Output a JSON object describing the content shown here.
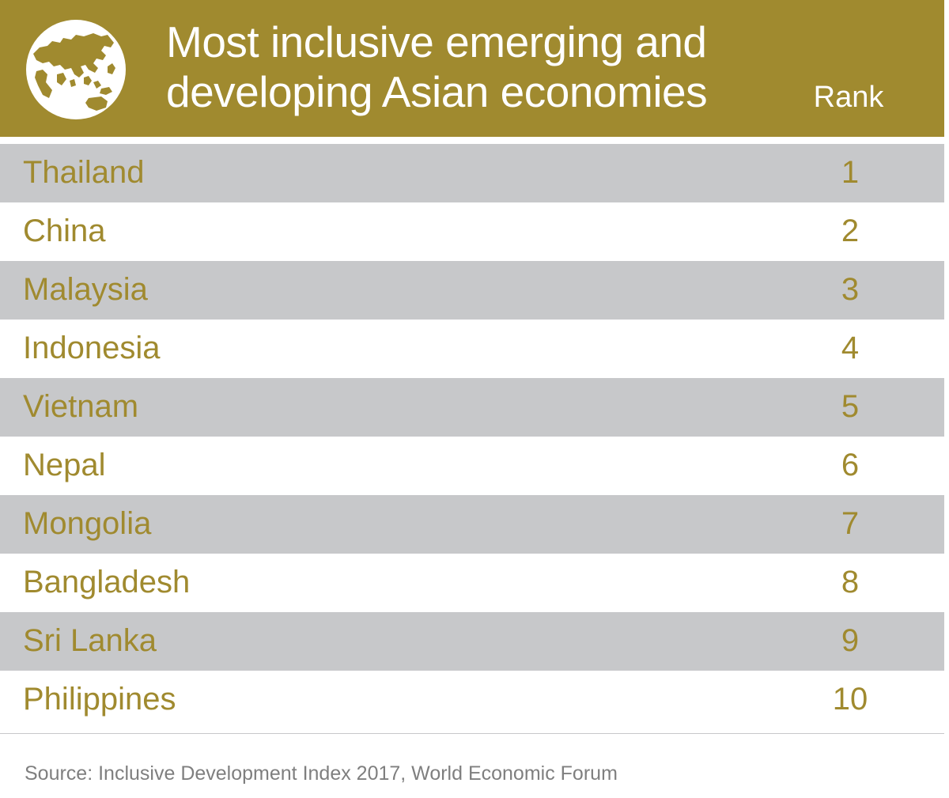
{
  "header": {
    "title_line1": "Most inclusive emerging and",
    "title_line2": "developing Asian economies",
    "rank_label": "Rank",
    "icon": "globe-icon"
  },
  "colors": {
    "accent": "#a08a2f",
    "stripe": "#c7c8ca",
    "source_text": "#7f7f7f"
  },
  "chart_data": {
    "type": "table",
    "columns": [
      "",
      "Rank"
    ],
    "rows": [
      {
        "country": "Thailand",
        "rank": "1"
      },
      {
        "country": "China",
        "rank": "2"
      },
      {
        "country": "Malaysia",
        "rank": "3"
      },
      {
        "country": "Indonesia",
        "rank": "4"
      },
      {
        "country": "Vietnam",
        "rank": "5"
      },
      {
        "country": "Nepal",
        "rank": "6"
      },
      {
        "country": "Mongolia",
        "rank": "7"
      },
      {
        "country": "Bangladesh",
        "rank": "8"
      },
      {
        "country": "Sri Lanka",
        "rank": "9"
      },
      {
        "country": "Philippines",
        "rank": "10"
      }
    ],
    "title": "Most inclusive emerging and developing Asian economies"
  },
  "footer": {
    "source": "Source: Inclusive Development Index 2017, World Economic Forum"
  }
}
